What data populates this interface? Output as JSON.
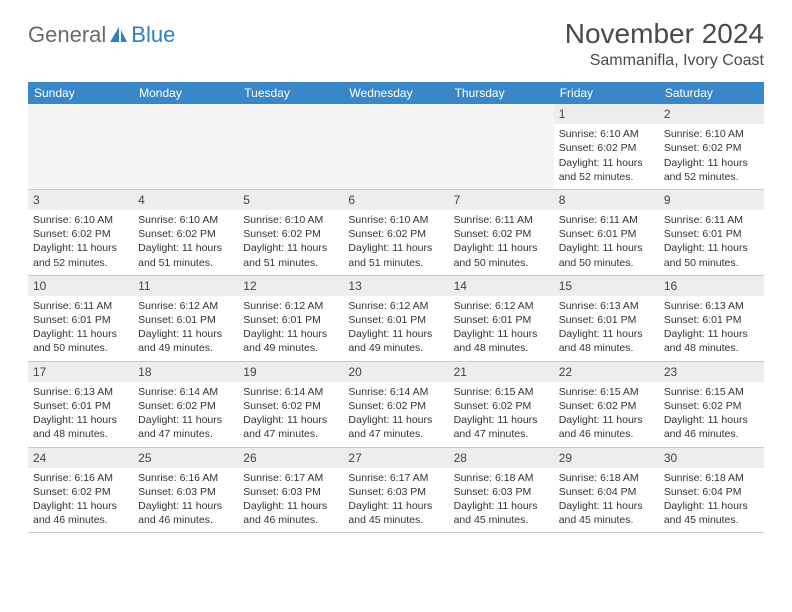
{
  "logo": {
    "gray": "General",
    "blue": "Blue"
  },
  "title": "November 2024",
  "location": "Sammanifla, Ivory Coast",
  "colors": {
    "header_bg": "#3a87c8",
    "header_text": "#ffffff",
    "daynum_bg": "#ebedef",
    "border": "#c9c9c9",
    "logo_gray": "#6a6a6a",
    "logo_blue": "#2f7fc2",
    "body_text": "#333333"
  },
  "dayNames": [
    "Sunday",
    "Monday",
    "Tuesday",
    "Wednesday",
    "Thursday",
    "Friday",
    "Saturday"
  ],
  "weeks": [
    [
      {
        "empty": true
      },
      {
        "empty": true
      },
      {
        "empty": true
      },
      {
        "empty": true
      },
      {
        "empty": true
      },
      {
        "n": "1",
        "sr": "6:10 AM",
        "ss": "6:02 PM",
        "dl": "11 hours and 52 minutes."
      },
      {
        "n": "2",
        "sr": "6:10 AM",
        "ss": "6:02 PM",
        "dl": "11 hours and 52 minutes."
      }
    ],
    [
      {
        "n": "3",
        "sr": "6:10 AM",
        "ss": "6:02 PM",
        "dl": "11 hours and 52 minutes."
      },
      {
        "n": "4",
        "sr": "6:10 AM",
        "ss": "6:02 PM",
        "dl": "11 hours and 51 minutes."
      },
      {
        "n": "5",
        "sr": "6:10 AM",
        "ss": "6:02 PM",
        "dl": "11 hours and 51 minutes."
      },
      {
        "n": "6",
        "sr": "6:10 AM",
        "ss": "6:02 PM",
        "dl": "11 hours and 51 minutes."
      },
      {
        "n": "7",
        "sr": "6:11 AM",
        "ss": "6:02 PM",
        "dl": "11 hours and 50 minutes."
      },
      {
        "n": "8",
        "sr": "6:11 AM",
        "ss": "6:01 PM",
        "dl": "11 hours and 50 minutes."
      },
      {
        "n": "9",
        "sr": "6:11 AM",
        "ss": "6:01 PM",
        "dl": "11 hours and 50 minutes."
      }
    ],
    [
      {
        "n": "10",
        "sr": "6:11 AM",
        "ss": "6:01 PM",
        "dl": "11 hours and 50 minutes."
      },
      {
        "n": "11",
        "sr": "6:12 AM",
        "ss": "6:01 PM",
        "dl": "11 hours and 49 minutes."
      },
      {
        "n": "12",
        "sr": "6:12 AM",
        "ss": "6:01 PM",
        "dl": "11 hours and 49 minutes."
      },
      {
        "n": "13",
        "sr": "6:12 AM",
        "ss": "6:01 PM",
        "dl": "11 hours and 49 minutes."
      },
      {
        "n": "14",
        "sr": "6:12 AM",
        "ss": "6:01 PM",
        "dl": "11 hours and 48 minutes."
      },
      {
        "n": "15",
        "sr": "6:13 AM",
        "ss": "6:01 PM",
        "dl": "11 hours and 48 minutes."
      },
      {
        "n": "16",
        "sr": "6:13 AM",
        "ss": "6:01 PM",
        "dl": "11 hours and 48 minutes."
      }
    ],
    [
      {
        "n": "17",
        "sr": "6:13 AM",
        "ss": "6:01 PM",
        "dl": "11 hours and 48 minutes."
      },
      {
        "n": "18",
        "sr": "6:14 AM",
        "ss": "6:02 PM",
        "dl": "11 hours and 47 minutes."
      },
      {
        "n": "19",
        "sr": "6:14 AM",
        "ss": "6:02 PM",
        "dl": "11 hours and 47 minutes."
      },
      {
        "n": "20",
        "sr": "6:14 AM",
        "ss": "6:02 PM",
        "dl": "11 hours and 47 minutes."
      },
      {
        "n": "21",
        "sr": "6:15 AM",
        "ss": "6:02 PM",
        "dl": "11 hours and 47 minutes."
      },
      {
        "n": "22",
        "sr": "6:15 AM",
        "ss": "6:02 PM",
        "dl": "11 hours and 46 minutes."
      },
      {
        "n": "23",
        "sr": "6:15 AM",
        "ss": "6:02 PM",
        "dl": "11 hours and 46 minutes."
      }
    ],
    [
      {
        "n": "24",
        "sr": "6:16 AM",
        "ss": "6:02 PM",
        "dl": "11 hours and 46 minutes."
      },
      {
        "n": "25",
        "sr": "6:16 AM",
        "ss": "6:03 PM",
        "dl": "11 hours and 46 minutes."
      },
      {
        "n": "26",
        "sr": "6:17 AM",
        "ss": "6:03 PM",
        "dl": "11 hours and 46 minutes."
      },
      {
        "n": "27",
        "sr": "6:17 AM",
        "ss": "6:03 PM",
        "dl": "11 hours and 45 minutes."
      },
      {
        "n": "28",
        "sr": "6:18 AM",
        "ss": "6:03 PM",
        "dl": "11 hours and 45 minutes."
      },
      {
        "n": "29",
        "sr": "6:18 AM",
        "ss": "6:04 PM",
        "dl": "11 hours and 45 minutes."
      },
      {
        "n": "30",
        "sr": "6:18 AM",
        "ss": "6:04 PM",
        "dl": "11 hours and 45 minutes."
      }
    ]
  ],
  "labels": {
    "sunrise": "Sunrise:",
    "sunset": "Sunset:",
    "daylight": "Daylight:"
  }
}
